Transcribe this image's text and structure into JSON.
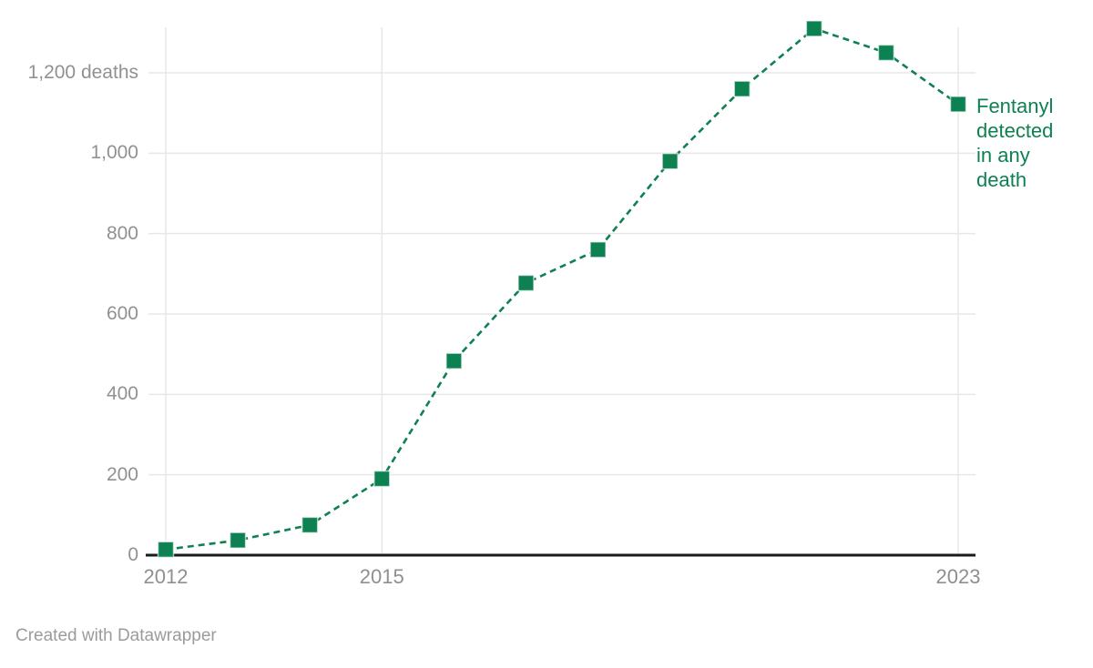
{
  "attribution": "Created with Datawrapper",
  "colors": {
    "series_green": "#0e8152",
    "grid": "#e7e7e7",
    "baseline": "#1a1a1a",
    "tick_text": "#919191",
    "attribution_text": "#9b9b9b"
  },
  "chart_data": {
    "type": "line",
    "title": "",
    "x": [
      2012,
      2013,
      2014,
      2015,
      2016,
      2017,
      2018,
      2019,
      2020,
      2021,
      2022,
      2023
    ],
    "series": [
      {
        "name": "Fentanyl detected in any death",
        "values": [
          14,
          37,
          75,
          190,
          483,
          677,
          760,
          980,
          1160,
          1310,
          1250,
          1122
        ],
        "color": "#0e8152",
        "line_style": "dashed",
        "marker": "square"
      }
    ],
    "xlim": [
      2012,
      2023
    ],
    "ylim": [
      0,
      1315
    ],
    "y_ticks": [
      {
        "value": 0,
        "label": "0"
      },
      {
        "value": 200,
        "label": "200"
      },
      {
        "value": 400,
        "label": "400"
      },
      {
        "value": 600,
        "label": "600"
      },
      {
        "value": 800,
        "label": "800"
      },
      {
        "value": 1000,
        "label": "1,000"
      },
      {
        "value": 1200,
        "label": "1,200 deaths"
      }
    ],
    "x_ticks": [
      {
        "value": 2012,
        "label": "2012"
      },
      {
        "value": 2015,
        "label": "2015"
      },
      {
        "value": 2023,
        "label": "2023"
      }
    ],
    "grid": "on",
    "legend_position": "direct-label-right-of-last-point"
  }
}
